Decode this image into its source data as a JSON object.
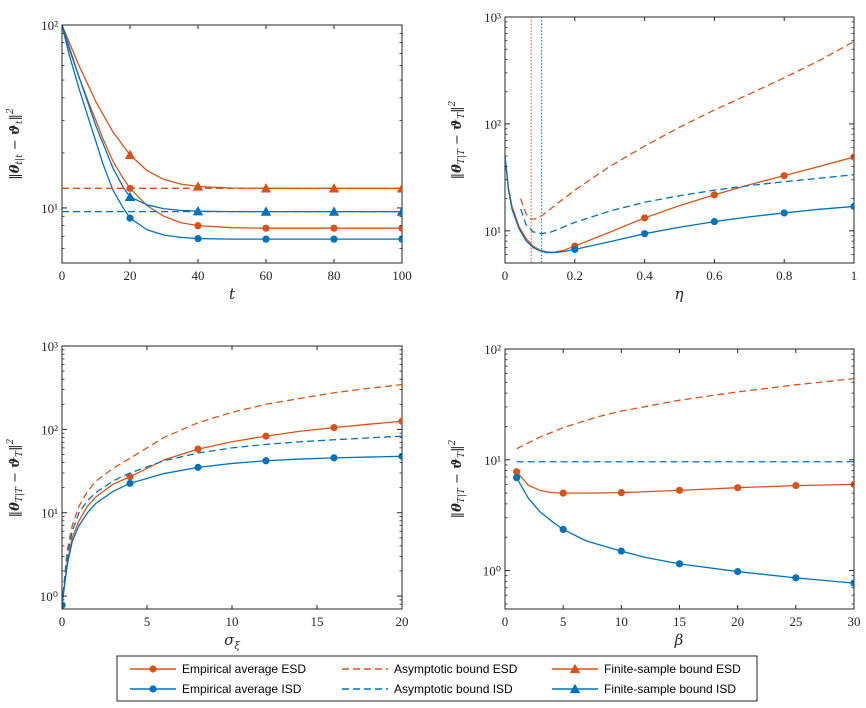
{
  "colors": {
    "esd": "#D95319",
    "isd": "#0072BD",
    "axis": "#262626"
  },
  "legend": {
    "entries": [
      {
        "label": "Empirical average ESD",
        "series": "esd",
        "style": "solid-circle"
      },
      {
        "label": "Asymptotic bound ESD",
        "series": "esd",
        "style": "dashed"
      },
      {
        "label": "Finite-sample bound ESD",
        "series": "esd",
        "style": "solid-triangle"
      },
      {
        "label": "Empirical average ISD",
        "series": "isd",
        "style": "solid-circle"
      },
      {
        "label": "Asymptotic bound ISD",
        "series": "isd",
        "style": "dashed"
      },
      {
        "label": "Finite-sample bound ISD",
        "series": "isd",
        "style": "solid-triangle"
      }
    ]
  },
  "chart_data": [
    {
      "type": "line",
      "id": "panel-t",
      "xlabel": "t",
      "ylabel": "‖θ_{t|t} − ϑ_t‖²",
      "xscale": "linear",
      "yscale": "log",
      "xlim": [
        0,
        100
      ],
      "ylim": [
        5,
        100
      ],
      "xticks": [
        0,
        20,
        40,
        60,
        80,
        100
      ],
      "xtick_labels": [
        "0",
        "20",
        "40",
        "60",
        "80",
        "100"
      ],
      "yticks": [
        10,
        100
      ],
      "ytick_labels": [
        "10¹",
        "10²"
      ],
      "series": [
        {
          "color": "esd",
          "dash": false,
          "marker": "circle",
          "x": [
            0,
            2,
            5,
            8,
            10,
            12,
            15,
            18,
            20,
            25,
            30,
            35,
            40,
            50,
            60,
            70,
            80,
            90,
            100
          ],
          "y": [
            100,
            75,
            52,
            37,
            30,
            24,
            18,
            14.5,
            12.8,
            10.3,
            9.0,
            8.3,
            8.0,
            7.8,
            7.75,
            7.75,
            7.75,
            7.75,
            7.75
          ],
          "markers_x": [
            20,
            40,
            60,
            80,
            100
          ],
          "markers_y": [
            12.8,
            8.0,
            7.75,
            7.75,
            7.75
          ]
        },
        {
          "color": "isd",
          "dash": false,
          "marker": "circle",
          "x": [
            0,
            2,
            5,
            8,
            10,
            12,
            15,
            18,
            20,
            25,
            30,
            35,
            40,
            50,
            60,
            70,
            80,
            90,
            100
          ],
          "y": [
            100,
            70,
            45,
            30,
            23,
            17.5,
            12.5,
            10,
            8.8,
            7.6,
            7.1,
            6.9,
            6.8,
            6.75,
            6.75,
            6.75,
            6.75,
            6.75,
            6.75
          ],
          "markers_x": [
            20,
            40,
            60,
            80,
            100
          ],
          "markers_y": [
            8.8,
            6.8,
            6.75,
            6.75,
            6.75
          ]
        },
        {
          "color": "esd",
          "dash": false,
          "marker": "triangle",
          "x": [
            0,
            5,
            10,
            15,
            20,
            25,
            30,
            35,
            40,
            50,
            60,
            70,
            80,
            90,
            100
          ],
          "y": [
            100,
            60,
            38,
            26,
            19.5,
            16,
            14.3,
            13.5,
            13.1,
            12.85,
            12.8,
            12.8,
            12.8,
            12.8,
            12.8
          ],
          "markers_x": [
            20,
            40,
            60,
            80,
            100
          ],
          "markers_y": [
            19.5,
            13.1,
            12.8,
            12.8,
            12.8
          ]
        },
        {
          "color": "isd",
          "dash": false,
          "marker": "triangle",
          "x": [
            0,
            5,
            10,
            15,
            18,
            20,
            25,
            30,
            35,
            40,
            50,
            60,
            70,
            80,
            90,
            100
          ],
          "y": [
            100,
            52,
            28,
            16.5,
            13,
            11.5,
            10.4,
            9.9,
            9.7,
            9.6,
            9.55,
            9.55,
            9.55,
            9.55,
            9.55,
            9.55
          ],
          "markers_x": [
            20,
            40,
            60,
            80,
            100
          ],
          "markers_y": [
            11.5,
            9.6,
            9.55,
            9.55,
            9.55
          ]
        },
        {
          "color": "esd",
          "dash": true,
          "x": [
            0,
            100
          ],
          "y": [
            12.8,
            12.8
          ]
        },
        {
          "color": "isd",
          "dash": true,
          "x": [
            0,
            100
          ],
          "y": [
            9.55,
            9.55
          ]
        }
      ]
    },
    {
      "type": "line",
      "id": "panel-eta",
      "xlabel": "η",
      "ylabel": "‖θ_{T|T} − ϑ_T‖²",
      "xscale": "linear",
      "yscale": "log",
      "xlim": [
        0,
        1
      ],
      "ylim": [
        5,
        1000
      ],
      "xticks": [
        0,
        0.2,
        0.4,
        0.6,
        0.8,
        1
      ],
      "xtick_labels": [
        "0",
        "0.2",
        "0.4",
        "0.6",
        "0.8",
        "1"
      ],
      "yticks": [
        10,
        100,
        1000
      ],
      "ytick_labels": [
        "10¹",
        "10²",
        "10³"
      ],
      "vlines": [
        {
          "x": 0.075,
          "color": "esd"
        },
        {
          "x": 0.105,
          "color": "isd"
        }
      ],
      "series": [
        {
          "color": "esd",
          "dash": false,
          "marker": "circle",
          "x": [
            0,
            0.01,
            0.02,
            0.04,
            0.06,
            0.08,
            0.1,
            0.12,
            0.14,
            0.17,
            0.2,
            0.3,
            0.4,
            0.5,
            0.6,
            0.7,
            0.8,
            0.9,
            1
          ],
          "y": [
            50,
            25,
            17,
            11,
            8.5,
            7.2,
            6.6,
            6.35,
            6.3,
            6.6,
            7.2,
            9.7,
            13.2,
            17.2,
            21.7,
            27,
            32.8,
            40,
            49
          ],
          "markers_x": [
            0.2,
            0.4,
            0.6,
            0.8,
            1
          ],
          "markers_y": [
            7.2,
            13.2,
            21.7,
            32.8,
            49
          ]
        },
        {
          "color": "isd",
          "dash": false,
          "marker": "circle",
          "x": [
            0,
            0.01,
            0.02,
            0.04,
            0.06,
            0.08,
            0.1,
            0.12,
            0.14,
            0.17,
            0.2,
            0.3,
            0.4,
            0.5,
            0.6,
            0.7,
            0.8,
            0.9,
            1
          ],
          "y": [
            50,
            24,
            16,
            10.5,
            8.1,
            7.0,
            6.5,
            6.25,
            6.25,
            6.4,
            6.7,
            7.9,
            9.4,
            10.8,
            12.2,
            13.5,
            14.7,
            15.9,
            16.9
          ],
          "markers_x": [
            0.2,
            0.4,
            0.6,
            0.8,
            1
          ],
          "markers_y": [
            6.7,
            9.4,
            12.2,
            14.7,
            16.9
          ]
        },
        {
          "color": "esd",
          "dash": true,
          "x": [
            0.045,
            0.06,
            0.075,
            0.09,
            0.11,
            0.15,
            0.2,
            0.3,
            0.4,
            0.5,
            0.6,
            0.7,
            0.8,
            0.9,
            1
          ],
          "y": [
            20,
            14.5,
            12.8,
            13,
            14.2,
            18,
            24,
            40,
            62,
            93,
            135,
            190,
            270,
            390,
            590
          ]
        },
        {
          "color": "isd",
          "dash": true,
          "x": [
            0.045,
            0.06,
            0.08,
            0.105,
            0.13,
            0.16,
            0.2,
            0.3,
            0.4,
            0.5,
            0.6,
            0.7,
            0.8,
            0.9,
            1
          ],
          "y": [
            16,
            11.5,
            9.8,
            9.4,
            9.7,
            10.6,
            12,
            15.3,
            18.5,
            21.3,
            24,
            26.5,
            28.8,
            31,
            33.5
          ]
        }
      ]
    },
    {
      "type": "line",
      "id": "panel-sigma",
      "xlabel": "σ_ξ",
      "ylabel": "‖θ_{T|T} − ϑ_T‖²",
      "xscale": "linear",
      "yscale": "log",
      "xlim": [
        0,
        20
      ],
      "ylim": [
        0.7,
        1000
      ],
      "xticks": [
        0,
        5,
        10,
        15,
        20
      ],
      "xtick_labels": [
        "0",
        "5",
        "10",
        "15",
        "20"
      ],
      "yticks": [
        1,
        10,
        100,
        1000
      ],
      "ytick_labels": [
        "10⁰",
        "10¹",
        "10²",
        "10³"
      ],
      "series": [
        {
          "color": "esd",
          "dash": false,
          "marker": "circle",
          "x": [
            0,
            0.3,
            0.6,
            1,
            1.5,
            2,
            3,
            4,
            6,
            8,
            10,
            12,
            14,
            16,
            18,
            20
          ],
          "y": [
            0.78,
            2.5,
            5,
            8,
            12,
            15.5,
            22,
            27,
            43,
            58,
            71,
            83,
            95,
            105,
            115,
            125
          ],
          "markers_x": [
            0,
            4,
            8,
            12,
            16,
            20
          ],
          "markers_y": [
            0.78,
            27,
            58,
            83,
            105,
            125
          ]
        },
        {
          "color": "isd",
          "dash": false,
          "marker": "circle",
          "x": [
            0,
            0.3,
            0.6,
            1,
            1.5,
            2,
            3,
            4,
            6,
            8,
            10,
            12,
            14,
            16,
            18,
            20
          ],
          "y": [
            0.78,
            2.3,
            4.5,
            7,
            10,
            13,
            18,
            22.5,
            29.5,
            35,
            39,
            42,
            44,
            45.5,
            46.5,
            47.5
          ],
          "markers_x": [
            0,
            4,
            8,
            12,
            16,
            20
          ],
          "markers_y": [
            0.78,
            22.5,
            35,
            42,
            45.5,
            47.5
          ]
        },
        {
          "color": "esd",
          "dash": true,
          "x": [
            0,
            0.3,
            0.6,
            1,
            1.5,
            2,
            3,
            4,
            6,
            8,
            10,
            12,
            14,
            16,
            18,
            20
          ],
          "y": [
            0.78,
            3.5,
            7,
            12,
            18,
            24,
            34,
            45,
            80,
            120,
            160,
            200,
            235,
            275,
            310,
            345
          ]
        },
        {
          "color": "isd",
          "dash": true,
          "x": [
            0,
            0.3,
            0.6,
            1,
            1.5,
            2,
            3,
            4,
            6,
            8,
            10,
            12,
            14,
            16,
            18,
            20
          ],
          "y": [
            0.78,
            3,
            6,
            10,
            14,
            17.5,
            24,
            30,
            42,
            52,
            60,
            66,
            71,
            75,
            79,
            83
          ]
        }
      ]
    },
    {
      "type": "line",
      "id": "panel-beta",
      "xlabel": "β",
      "ylabel": "‖θ_{T|T} − ϑ_T‖²",
      "xscale": "linear",
      "yscale": "log",
      "xlim": [
        0,
        30
      ],
      "ylim": [
        0.45,
        100
      ],
      "xticks": [
        0,
        5,
        10,
        15,
        20,
        25,
        30
      ],
      "xtick_labels": [
        "0",
        "5",
        "10",
        "15",
        "20",
        "25",
        "30"
      ],
      "yticks": [
        1,
        10,
        100
      ],
      "ytick_labels": [
        "10⁰",
        "10¹",
        "10²"
      ],
      "series": [
        {
          "color": "esd",
          "dash": false,
          "marker": "circle",
          "x": [
            1,
            2,
            3,
            4,
            5,
            7,
            10,
            15,
            20,
            25,
            30
          ],
          "y": [
            7.8,
            5.9,
            5.3,
            5.05,
            5.0,
            5.0,
            5.05,
            5.3,
            5.6,
            5.85,
            6.0
          ],
          "markers_x": [
            1,
            5,
            10,
            15,
            20,
            25,
            30
          ],
          "markers_y": [
            7.8,
            5.0,
            5.05,
            5.3,
            5.6,
            5.85,
            6.0
          ]
        },
        {
          "color": "isd",
          "dash": false,
          "marker": "circle",
          "x": [
            1,
            2,
            3,
            4,
            5,
            7,
            10,
            12,
            15,
            20,
            25,
            30
          ],
          "y": [
            6.9,
            4.5,
            3.4,
            2.8,
            2.35,
            1.85,
            1.5,
            1.32,
            1.15,
            0.98,
            0.86,
            0.77
          ],
          "markers_x": [
            1,
            5,
            10,
            15,
            20,
            25,
            30
          ],
          "markers_y": [
            6.9,
            2.35,
            1.5,
            1.15,
            0.98,
            0.86,
            0.77
          ]
        },
        {
          "color": "esd",
          "dash": true,
          "x": [
            1,
            3,
            5,
            8,
            10,
            15,
            20,
            25,
            30
          ],
          "y": [
            12.6,
            16,
            19.5,
            24.5,
            27.5,
            34.5,
            41,
            47.5,
            54
          ]
        },
        {
          "color": "isd",
          "dash": true,
          "x": [
            1,
            30
          ],
          "y": [
            9.6,
            9.6
          ]
        }
      ]
    }
  ]
}
